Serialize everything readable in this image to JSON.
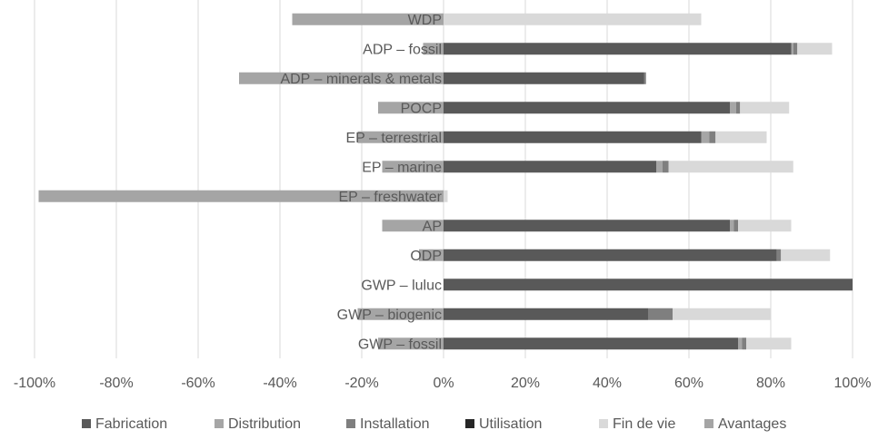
{
  "chart_data": {
    "type": "bar",
    "orientation": "horizontal",
    "stacked": true,
    "categories": [
      "WDP",
      "ADP – fossil",
      "ADP – minerals  & metals",
      "POCP",
      "EP – terrestrial",
      "EP – marine",
      "EP – freshwater",
      "AP",
      "ODP",
      "GWP – luluc",
      "GWP – biogenic",
      "GWP – fossil"
    ],
    "series": [
      {
        "name": "Fabrication",
        "color": "#595959",
        "values": [
          0,
          85,
          49,
          70,
          63,
          52,
          0,
          70,
          81.5,
          100,
          50,
          72
        ]
      },
      {
        "name": "Distribution",
        "color": "#a6a6a6",
        "values": [
          0,
          0.5,
          0,
          1.5,
          2,
          1.5,
          0,
          1,
          0,
          0,
          0,
          1
        ]
      },
      {
        "name": "Installation",
        "color": "#7f7f7f",
        "values": [
          0,
          1,
          0.5,
          1,
          1.5,
          1.5,
          0,
          1,
          1,
          0,
          6,
          1
        ]
      },
      {
        "name": "Utilisation",
        "color": "#262626",
        "values": [
          0,
          0,
          0,
          0,
          0,
          0,
          0,
          0,
          0,
          0,
          0,
          0
        ]
      },
      {
        "name": "Fin de vie",
        "color": "#d9d9d9",
        "values": [
          63,
          8.5,
          0,
          12,
          12.5,
          30.5,
          1,
          13,
          12,
          0,
          24,
          11
        ]
      },
      {
        "name": "Avantages",
        "color": "#a5a5a5",
        "values": [
          -37,
          -5,
          -50,
          -16,
          -21,
          -15,
          -99,
          -15,
          -6,
          0,
          -21,
          -16
        ]
      }
    ],
    "xlim": [
      -100,
      100
    ],
    "xticks": [
      -100,
      -80,
      -60,
      -40,
      -20,
      0,
      20,
      40,
      60,
      80,
      100
    ],
    "tick_labels": [
      "-100%",
      "-80%",
      "-60%",
      "-40%",
      "-20%",
      "0%",
      "20%",
      "40%",
      "60%",
      "80%",
      "100%"
    ],
    "grid": true,
    "legend_position": "bottom"
  }
}
